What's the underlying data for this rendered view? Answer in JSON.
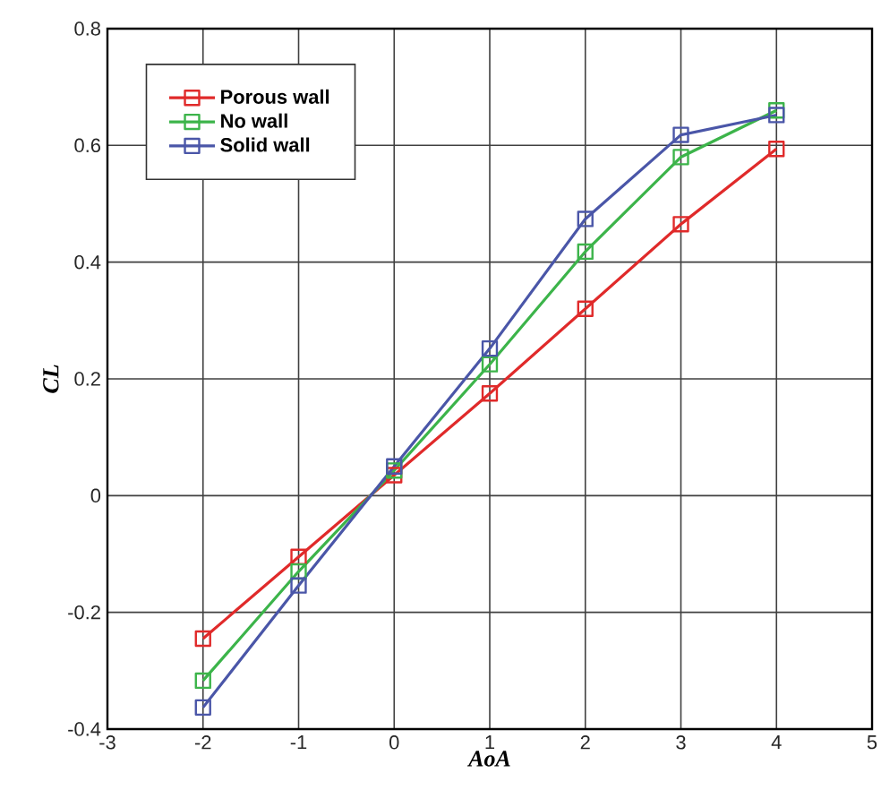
{
  "chart_data": {
    "type": "line",
    "xlabel": "AoA",
    "ylabel": "CL",
    "x": [
      -2,
      -1,
      0,
      1,
      2,
      3,
      4
    ],
    "series": [
      {
        "name": "Porous wall",
        "color": "#e02a2a",
        "values": [
          -0.245,
          -0.105,
          0.035,
          0.175,
          0.32,
          0.465,
          0.594
        ]
      },
      {
        "name": "No wall",
        "color": "#3cb44a",
        "values": [
          -0.317,
          -0.13,
          0.043,
          0.225,
          0.418,
          0.58,
          0.66
        ]
      },
      {
        "name": "Solid wall",
        "color": "#4a56a8",
        "values": [
          -0.363,
          -0.154,
          0.05,
          0.252,
          0.474,
          0.618,
          0.652
        ]
      }
    ],
    "xlim": [
      -3,
      5
    ],
    "ylim": [
      -0.4,
      0.8
    ],
    "xticks": [
      -3,
      -2,
      -1,
      0,
      1,
      2,
      3,
      4,
      5
    ],
    "yticks": [
      -0.4,
      -0.2,
      0,
      0.2,
      0.4,
      0.6,
      0.8
    ],
    "grid": true,
    "legend": "top left",
    "marker": "square",
    "line_style": "solid"
  }
}
